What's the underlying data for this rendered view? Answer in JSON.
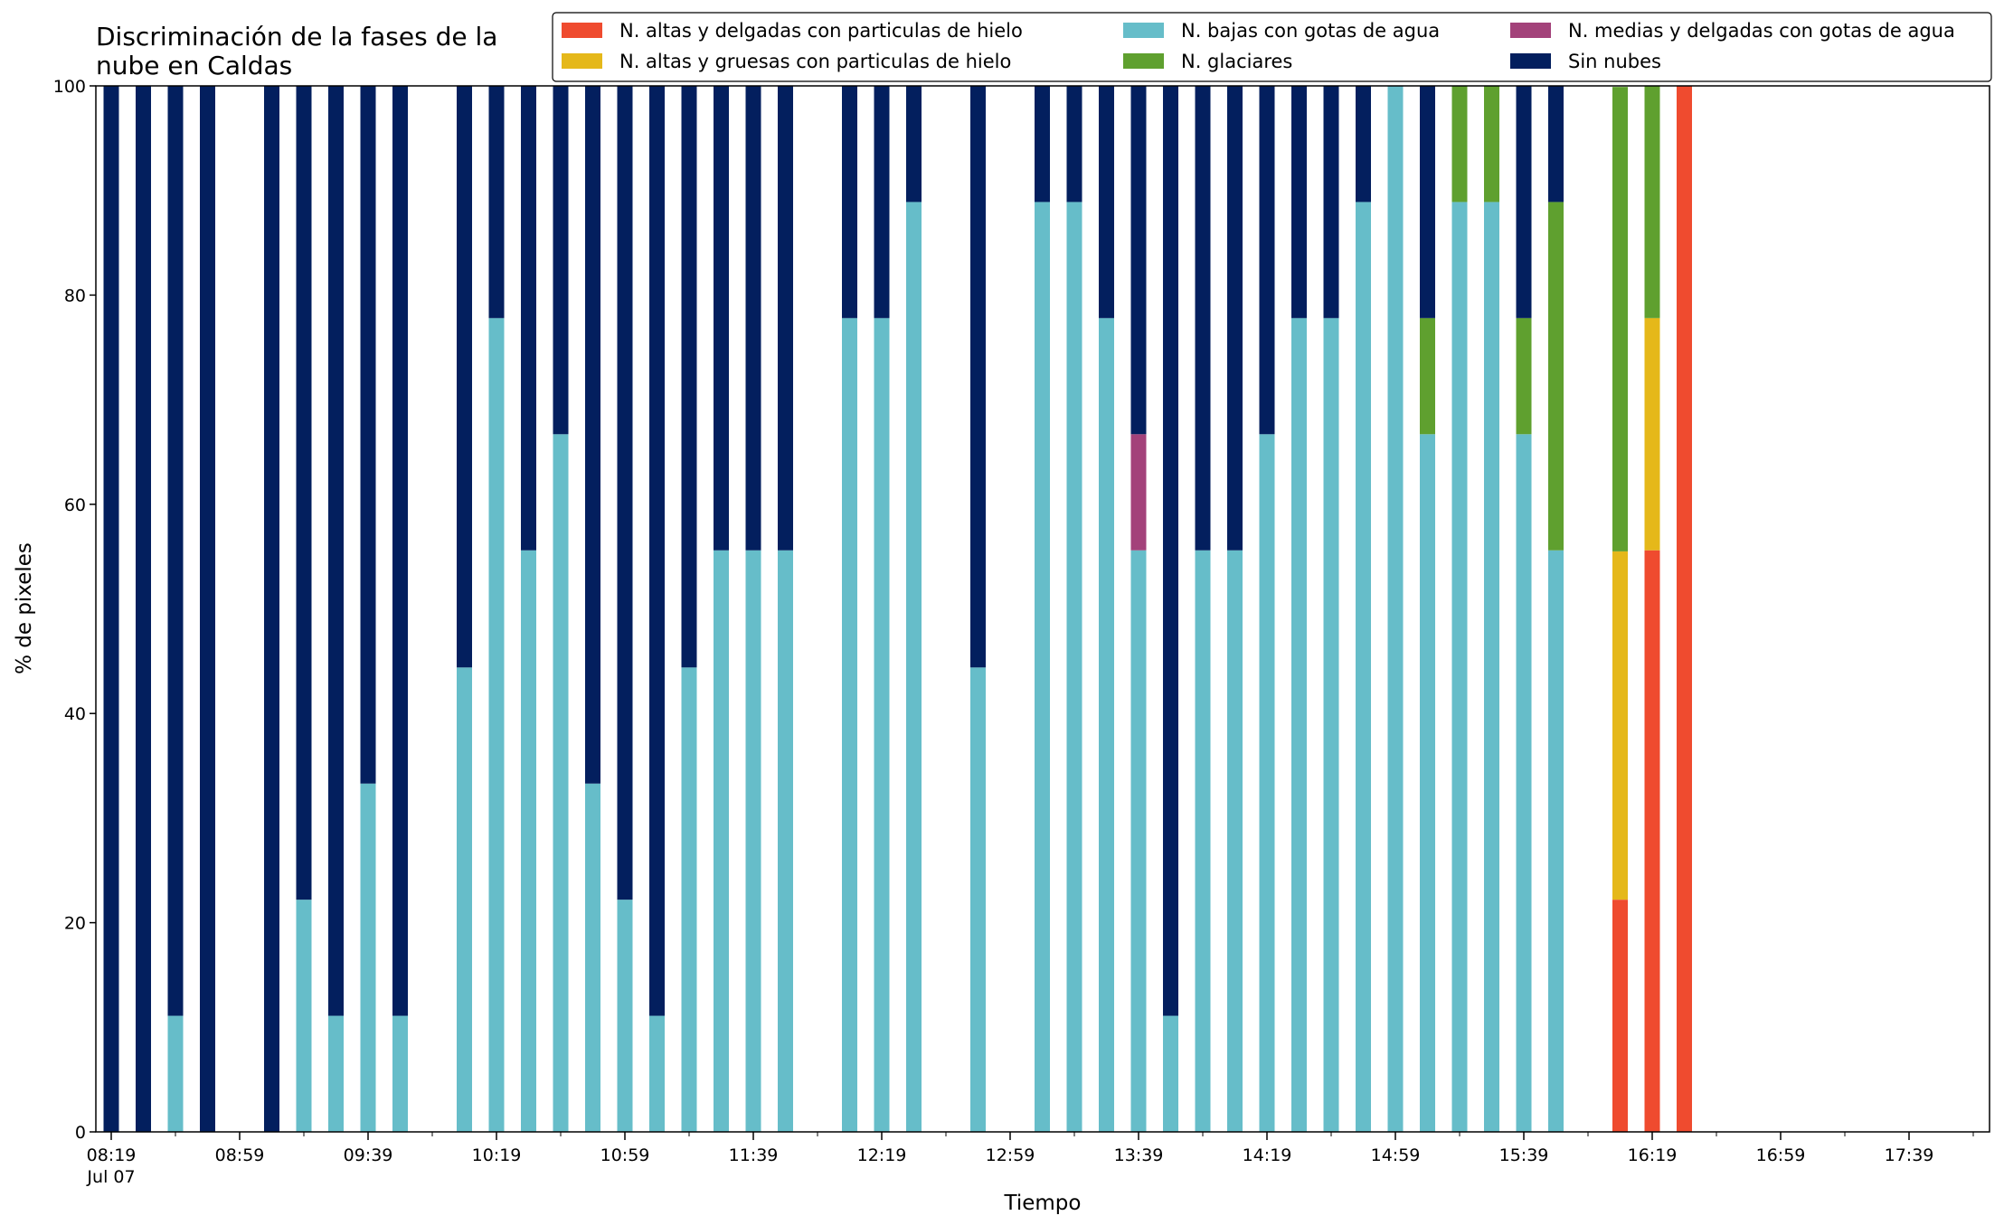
{
  "chart_data": {
    "type": "bar",
    "stacked": true,
    "title_lines": [
      "Discriminación de la fases de la",
      "nube en Caldas"
    ],
    "xlabel": "Tiempo",
    "ylabel": "% de pixeles",
    "ylim": [
      0,
      100
    ],
    "yticks": [
      "0",
      "20",
      "40",
      "60",
      "80",
      "100"
    ],
    "grid": false,
    "legend_position": "top-right",
    "x_start": "08:19",
    "x_step_minutes": 10,
    "x_slots": 59,
    "x_tick_labels": [
      {
        "text": "08:19",
        "sub": "Jul 07",
        "slot": 0
      },
      {
        "text": "08:59",
        "sub": "",
        "slot": 4
      },
      {
        "text": "09:39",
        "sub": "",
        "slot": 8
      },
      {
        "text": "10:19",
        "sub": "",
        "slot": 12
      },
      {
        "text": "10:59",
        "sub": "",
        "slot": 16
      },
      {
        "text": "11:39",
        "sub": "",
        "slot": 20
      },
      {
        "text": "12:19",
        "sub": "",
        "slot": 24
      },
      {
        "text": "12:59",
        "sub": "",
        "slot": 28
      },
      {
        "text": "13:39",
        "sub": "",
        "slot": 32
      },
      {
        "text": "14:19",
        "sub": "",
        "slot": 36
      },
      {
        "text": "14:59",
        "sub": "",
        "slot": 40
      },
      {
        "text": "15:39",
        "sub": "",
        "slot": 44
      },
      {
        "text": "16:19",
        "sub": "",
        "slot": 48
      },
      {
        "text": "16:59",
        "sub": "",
        "slot": 52
      },
      {
        "text": "17:39",
        "sub": "",
        "slot": 56
      }
    ],
    "categories": [
      "08:19",
      "08:29",
      "08:39",
      "08:49",
      "09:09",
      "09:19",
      "09:29",
      "09:39",
      "09:49",
      "10:09",
      "10:19",
      "10:29",
      "10:39",
      "10:49",
      "10:59",
      "11:09",
      "11:19",
      "11:29",
      "11:39",
      "11:49",
      "12:09",
      "12:19",
      "12:29",
      "12:49",
      "13:09",
      "13:19",
      "13:29",
      "13:39",
      "13:49",
      "13:59",
      "14:09",
      "14:19",
      "14:29",
      "14:39",
      "14:49",
      "14:59",
      "15:09",
      "15:19",
      "15:29",
      "15:39",
      "15:49",
      "16:09",
      "16:19",
      "16:29"
    ],
    "slots": [
      0,
      1,
      2,
      3,
      5,
      6,
      7,
      8,
      9,
      11,
      12,
      13,
      14,
      15,
      16,
      17,
      18,
      19,
      20,
      21,
      23,
      24,
      25,
      27,
      29,
      30,
      31,
      32,
      33,
      34,
      35,
      36,
      37,
      38,
      39,
      40,
      41,
      42,
      43,
      44,
      45,
      47,
      48,
      49
    ],
    "series": [
      {
        "name": "N. altas y delgadas con particulas de hielo",
        "color": "#ef4b2f",
        "values": [
          0,
          0,
          0,
          0,
          0,
          0,
          0,
          0,
          0,
          0,
          0,
          0,
          0,
          0,
          0,
          0,
          0,
          0,
          0,
          0,
          0,
          0,
          0,
          0,
          0,
          0,
          0,
          0,
          0,
          0,
          0,
          0,
          0,
          0,
          0,
          0,
          0,
          0,
          0,
          0,
          0,
          22.2,
          55.6,
          100
        ]
      },
      {
        "name": "N. altas y gruesas con particulas de hielo",
        "color": "#e5b81a",
        "values": [
          0,
          0,
          0,
          0,
          0,
          0,
          0,
          0,
          0,
          0,
          0,
          0,
          0,
          0,
          0,
          0,
          0,
          0,
          0,
          0,
          0,
          0,
          0,
          0,
          0,
          0,
          0,
          0,
          0,
          0,
          0,
          0,
          0,
          0,
          0,
          0,
          0,
          0,
          0,
          0,
          0,
          33.3,
          22.2,
          0
        ]
      },
      {
        "name": "N. bajas con gotas de agua",
        "color": "#66bdc9",
        "values": [
          0,
          0,
          11.1,
          0,
          0,
          22.2,
          11.1,
          33.3,
          11.1,
          44.4,
          77.8,
          55.6,
          66.7,
          33.3,
          22.2,
          11.1,
          44.4,
          55.6,
          55.6,
          55.6,
          77.8,
          77.8,
          88.9,
          44.4,
          88.9,
          88.9,
          77.8,
          55.6,
          11.1,
          55.6,
          55.6,
          66.7,
          77.8,
          77.8,
          88.9,
          100,
          66.7,
          88.9,
          88.9,
          66.7,
          55.6,
          0,
          0,
          0
        ]
      },
      {
        "name": "N. glaciares",
        "color": "#5fa02f",
        "values": [
          0,
          0,
          0,
          0,
          0,
          0,
          0,
          0,
          0,
          0,
          0,
          0,
          0,
          0,
          0,
          0,
          0,
          0,
          0,
          0,
          0,
          0,
          0,
          0,
          0,
          0,
          0,
          0,
          0,
          0,
          0,
          0,
          0,
          0,
          0,
          0,
          11.1,
          11.1,
          11.1,
          11.1,
          33.3,
          44.4,
          22.2,
          0
        ]
      },
      {
        "name": "N. medias y delgadas con gotas de agua",
        "color": "#a3427a",
        "values": [
          0,
          0,
          0,
          0,
          0,
          0,
          0,
          0,
          0,
          0,
          0,
          0,
          0,
          0,
          0,
          0,
          0,
          0,
          0,
          0,
          0,
          0,
          0,
          0,
          0,
          0,
          0,
          11.1,
          0,
          0,
          0,
          0,
          0,
          0,
          0,
          0,
          0,
          0,
          0,
          0,
          0,
          0,
          0,
          0
        ]
      },
      {
        "name": "Sin nubes",
        "color": "#031f5e",
        "values": [
          100,
          100,
          88.9,
          100,
          100,
          77.8,
          88.9,
          66.7,
          88.9,
          55.6,
          22.2,
          44.4,
          33.3,
          66.7,
          77.8,
          88.9,
          55.6,
          44.4,
          44.4,
          44.4,
          22.2,
          22.2,
          11.1,
          55.6,
          11.1,
          11.1,
          22.2,
          33.3,
          88.9,
          44.4,
          44.4,
          33.3,
          22.2,
          22.2,
          11.1,
          0,
          22.2,
          0,
          0,
          22.2,
          11.1,
          0,
          0,
          0
        ]
      }
    ],
    "legend_order": [
      0,
      1,
      2,
      3,
      4,
      5
    ]
  }
}
